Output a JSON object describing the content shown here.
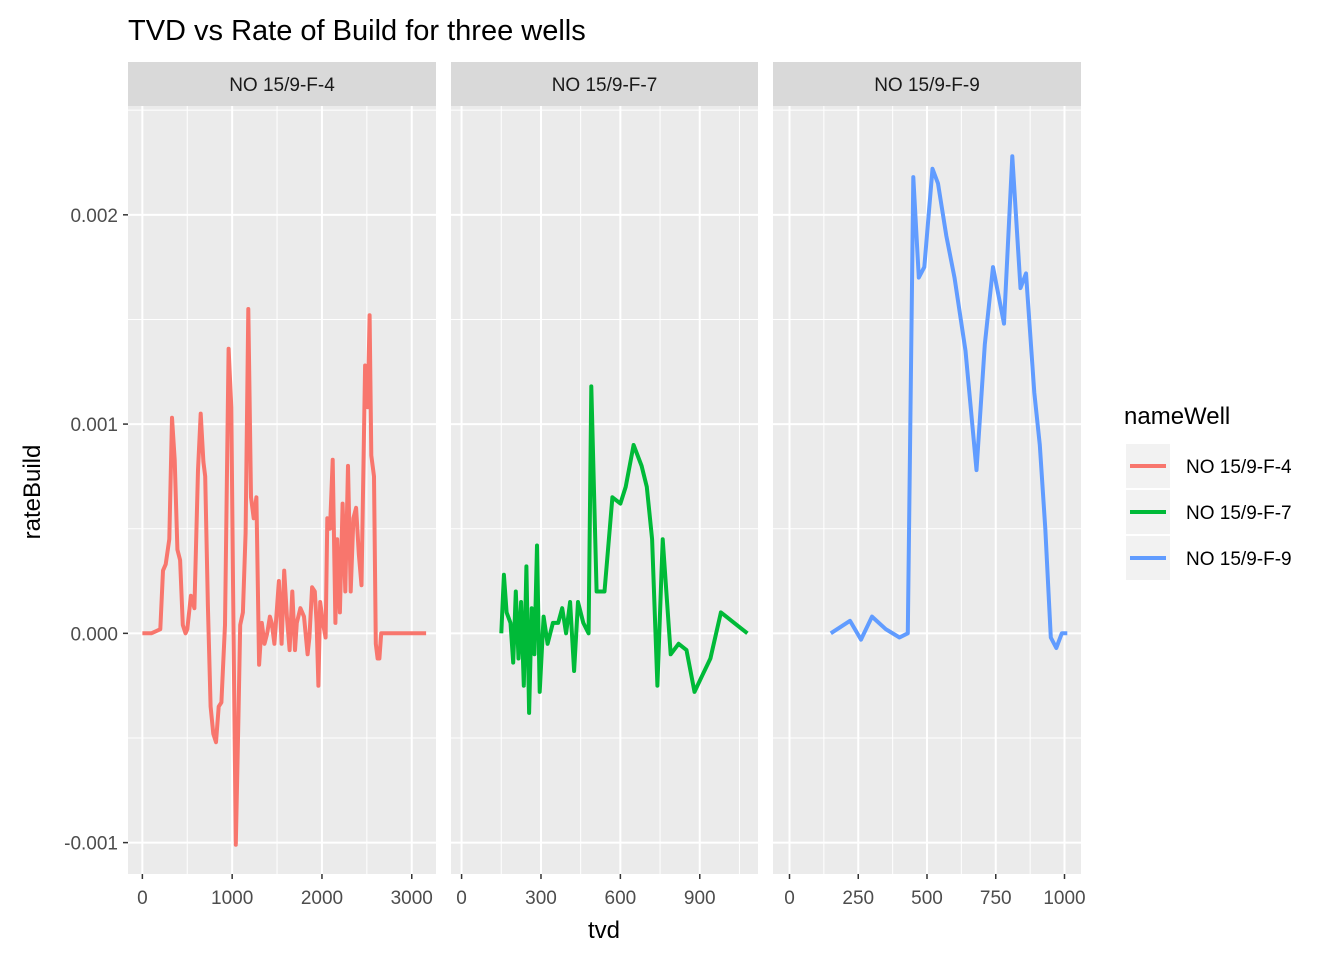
{
  "chart_data": {
    "type": "line",
    "title": "TVD vs Rate of Build for three wells",
    "xlabel": "tvd",
    "ylabel": "rateBuild",
    "ylim": [
      -0.00115,
      0.00252
    ],
    "yticks": [
      -0.001,
      0.0,
      0.001,
      0.002
    ],
    "ytick_labels": [
      "-0.001",
      "0.000",
      "0.001",
      "0.002"
    ],
    "grid": true,
    "legend": {
      "title": "nameWell",
      "placement": "right",
      "entries": [
        "NO 15/9-F-4",
        "NO 15/9-F-7",
        "NO 15/9-F-9"
      ]
    },
    "colors": {
      "NO 15/9-F-4": "#F8766D",
      "NO 15/9-F-7": "#00BA38",
      "NO 15/9-F-9": "#619CFF",
      "panel_background": "#EBEBEB",
      "strip_background": "#D9D9D9"
    },
    "facets": [
      {
        "strip": "NO 15/9-F-4",
        "xlim": [
          -160,
          3270
        ],
        "xticks": [
          0,
          1000,
          2000,
          3000
        ],
        "xtick_labels": [
          "0",
          "1000",
          "2000",
          "3000"
        ],
        "series": {
          "name": "NO 15/9-F-4",
          "x": [
            0,
            100,
            150,
            200,
            230,
            260,
            300,
            330,
            360,
            390,
            420,
            450,
            480,
            500,
            540,
            580,
            620,
            650,
            680,
            700,
            730,
            760,
            790,
            820,
            850,
            880,
            920,
            960,
            990,
            1010,
            1040,
            1070,
            1090,
            1120,
            1150,
            1180,
            1210,
            1240,
            1270,
            1300,
            1330,
            1360,
            1390,
            1420,
            1440,
            1470,
            1490,
            1520,
            1550,
            1580,
            1610,
            1640,
            1670,
            1700,
            1720,
            1760,
            1800,
            1840,
            1860,
            1890,
            1920,
            1940,
            1960,
            1980,
            2010,
            2040,
            2060,
            2090,
            2120,
            2150,
            2170,
            2200,
            2230,
            2260,
            2290,
            2320,
            2350,
            2380,
            2410,
            2440,
            2480,
            2510,
            2530,
            2550,
            2580,
            2600,
            2620,
            2640,
            2660,
            2680,
            2700,
            2720,
            2740,
            2760,
            2780,
            2800,
            2820,
            2840,
            2860,
            2880,
            2900,
            2920,
            2940,
            2960,
            2980,
            3000,
            3020,
            3040,
            3060,
            3080,
            3100,
            3120,
            3140,
            3160
          ],
          "y": [
            0.0,
            0.0,
            1e-05,
            2e-05,
            0.0003,
            0.00033,
            0.00045,
            0.00103,
            0.00083,
            0.0004,
            0.00035,
            4e-05,
            0.0,
            2e-05,
            0.00018,
            0.00012,
            0.00078,
            0.00105,
            0.00082,
            0.00075,
            0.00013,
            -0.00035,
            -0.00048,
            -0.00052,
            -0.00035,
            -0.00033,
            4e-05,
            0.00136,
            0.00108,
            0.0002,
            -0.00101,
            -0.00041,
            4e-05,
            0.0001,
            0.00048,
            0.00155,
            0.00065,
            0.00055,
            0.00065,
            -0.00015,
            5e-05,
            -5e-05,
            0.0,
            8e-05,
            5e-05,
            -5e-05,
            7e-05,
            0.00025,
            -5e-05,
            0.0003,
            8e-05,
            -8e-05,
            0.0002,
            -8e-05,
            5e-05,
            0.00012,
            8e-05,
            -0.0001,
            -2e-05,
            0.00022,
            0.0002,
            5e-05,
            -0.00025,
            0.00015,
            5e-05,
            -2e-05,
            0.00055,
            0.0005,
            0.00083,
            5e-05,
            0.00045,
            0.0001,
            0.00062,
            0.0002,
            0.0008,
            0.0002,
            0.00055,
            0.0006,
            0.00038,
            0.00023,
            0.00128,
            0.00108,
            0.00152,
            0.00085,
            0.00075,
            -5e-05,
            -0.00012,
            -0.00012,
            0.0,
            0.0,
            0.0,
            0.0,
            0.0,
            0.0,
            0.0,
            0.0,
            0.0,
            0.0,
            0.0,
            0.0,
            0.0,
            0.0,
            0.0,
            0.0,
            0.0,
            0.0,
            0.0,
            0.0,
            0.0,
            0.0,
            0.0,
            0.0,
            0.0,
            0.0
          ]
        }
      },
      {
        "strip": "NO 15/9-F-7",
        "xlim": [
          -40,
          1120
        ],
        "xticks": [
          0,
          300,
          600,
          900
        ],
        "xtick_labels": [
          "0",
          "300",
          "600",
          "900"
        ],
        "series": {
          "name": "NO 15/9-F-7",
          "x": [
            150,
            160,
            170,
            185,
            195,
            205,
            215,
            225,
            235,
            245,
            255,
            265,
            275,
            285,
            295,
            310,
            325,
            345,
            365,
            380,
            395,
            410,
            425,
            440,
            460,
            480,
            490,
            510,
            540,
            570,
            600,
            620,
            650,
            680,
            700,
            720,
            740,
            760,
            790,
            820,
            850,
            880,
            910,
            940,
            980,
            1000,
            1030,
            1060,
            1080
          ],
          "y": [
            0.0,
            0.00028,
            0.0001,
            5e-05,
            -0.00014,
            0.0002,
            -0.00012,
            0.00015,
            -0.00025,
            0.00032,
            -0.00038,
            0.00012,
            -0.0001,
            0.00042,
            -0.00028,
            8e-05,
            -5e-05,
            5e-05,
            5e-05,
            0.00012,
            0.0,
            0.00015,
            -0.00018,
            0.00015,
            5e-05,
            0.0,
            0.00118,
            0.0002,
            0.0002,
            0.00065,
            0.00062,
            0.0007,
            0.0009,
            0.0008,
            0.0007,
            0.00045,
            -0.00025,
            0.00045,
            -0.0001,
            -5e-05,
            -8e-05,
            -0.00028,
            -0.0002,
            -0.00012,
            0.0001,
            8e-05,
            5e-05,
            2e-05,
            0.0
          ]
        }
      },
      {
        "strip": "NO 15/9-F-9",
        "xlim": [
          -60,
          1060
        ],
        "xticks": [
          0,
          250,
          500,
          750,
          1000
        ],
        "xtick_labels": [
          "0",
          "250",
          "500",
          "750",
          "1000"
        ],
        "series": {
          "name": "NO 15/9-F-9",
          "x": [
            150,
            220,
            260,
            300,
            350,
            400,
            430,
            450,
            470,
            490,
            520,
            540,
            570,
            600,
            640,
            680,
            710,
            740,
            780,
            810,
            840,
            860,
            890,
            910,
            930,
            950,
            970,
            990,
            1010
          ],
          "y": [
            0.0,
            6e-05,
            -3e-05,
            8e-05,
            2e-05,
            -2e-05,
            0.0,
            0.00218,
            0.0017,
            0.00175,
            0.00222,
            0.00215,
            0.0019,
            0.0017,
            0.00135,
            0.00078,
            0.00138,
            0.00175,
            0.00148,
            0.00228,
            0.00165,
            0.00172,
            0.00115,
            0.0009,
            0.0005,
            -2e-05,
            -7e-05,
            0.0,
            0.0
          ]
        }
      }
    ]
  }
}
